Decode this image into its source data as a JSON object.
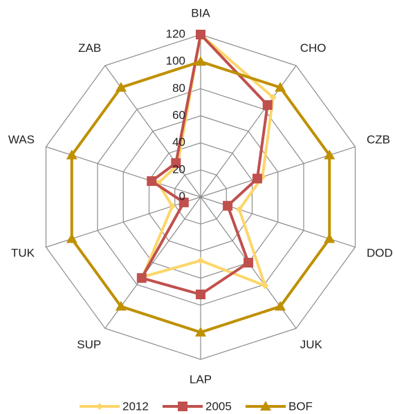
{
  "chart_data": {
    "type": "radar",
    "categories": [
      "BIA",
      "CHO",
      "CZB",
      "DOD",
      "JUK",
      "LAP",
      "SUP",
      "TUK",
      "WAS",
      "ZAB"
    ],
    "series": [
      {
        "name": "2012",
        "color": "#fdd66a",
        "marker": "diamond",
        "values": [
          120,
          91,
          48,
          30,
          81,
          47,
          73,
          22,
          33,
          29
        ]
      },
      {
        "name": "2005",
        "color": "#c0504d",
        "marker": "square",
        "values": [
          120,
          84,
          44,
          21,
          60,
          72,
          74,
          13,
          38,
          31
        ]
      },
      {
        "name": "BOF",
        "color": "#bf9000",
        "marker": "triangle",
        "values": [
          100,
          100,
          100,
          100,
          100,
          100,
          100,
          100,
          100,
          100
        ]
      }
    ],
    "rlim": [
      0,
      120
    ],
    "rticks": [
      0,
      20,
      40,
      60,
      80,
      100,
      120
    ],
    "grid": true,
    "legend": "bottom"
  }
}
